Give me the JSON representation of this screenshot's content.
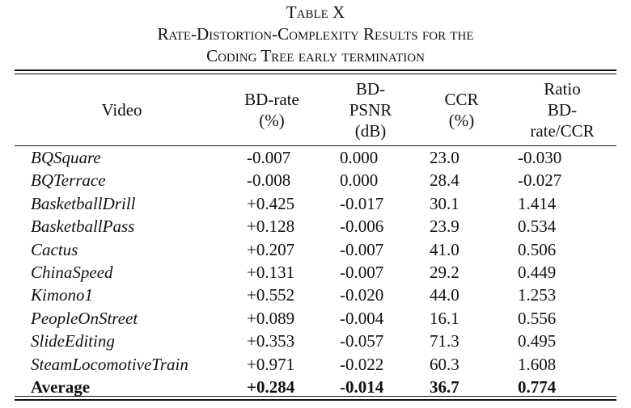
{
  "caption": {
    "label": "Table X",
    "line1": "Rate-Distortion-Complexity Results for the",
    "line2": "Coding Tree early termination"
  },
  "headers": {
    "video": [
      "Video"
    ],
    "bdrate": [
      "BD-rate",
      "(%)"
    ],
    "bdpsnr": [
      "BD-",
      "PSNR",
      "(dB)"
    ],
    "ccr": [
      "CCR",
      "(%)"
    ],
    "ratio": [
      "Ratio",
      "BD-",
      "rate/CCR"
    ]
  },
  "rows": [
    {
      "video": "BQSquare",
      "bdrate": "-0.007",
      "bdpsnr": "0.000",
      "ccr": "23.0",
      "ratio": "-0.030"
    },
    {
      "video": "BQTerrace",
      "bdrate": "-0.008",
      "bdpsnr": "0.000",
      "ccr": "28.4",
      "ratio": "-0.027"
    },
    {
      "video": "BasketballDrill",
      "bdrate": "+0.425",
      "bdpsnr": "-0.017",
      "ccr": "30.1",
      "ratio": "1.414"
    },
    {
      "video": "BasketballPass",
      "bdrate": "+0.128",
      "bdpsnr": "-0.006",
      "ccr": "23.9",
      "ratio": "0.534"
    },
    {
      "video": "Cactus",
      "bdrate": "+0.207",
      "bdpsnr": "-0.007",
      "ccr": "41.0",
      "ratio": "0.506"
    },
    {
      "video": "ChinaSpeed",
      "bdrate": "+0.131",
      "bdpsnr": "-0.007",
      "ccr": "29.2",
      "ratio": "0.449"
    },
    {
      "video": "Kimono1",
      "bdrate": "+0.552",
      "bdpsnr": "-0.020",
      "ccr": "44.0",
      "ratio": "1.253"
    },
    {
      "video": "PeopleOnStreet",
      "bdrate": "+0.089",
      "bdpsnr": "-0.004",
      "ccr": "16.1",
      "ratio": "0.556"
    },
    {
      "video": "SlideEditing",
      "bdrate": "+0.353",
      "bdpsnr": "-0.057",
      "ccr": "71.3",
      "ratio": "0.495"
    },
    {
      "video": "SteamLocomotiveTrain",
      "bdrate": "+0.971",
      "bdpsnr": "-0.022",
      "ccr": "60.3",
      "ratio": "1.608"
    }
  ],
  "average": {
    "video": "Average",
    "bdrate": "+0.284",
    "bdpsnr": "-0.014",
    "ccr": "36.7",
    "ratio": "0.774"
  }
}
